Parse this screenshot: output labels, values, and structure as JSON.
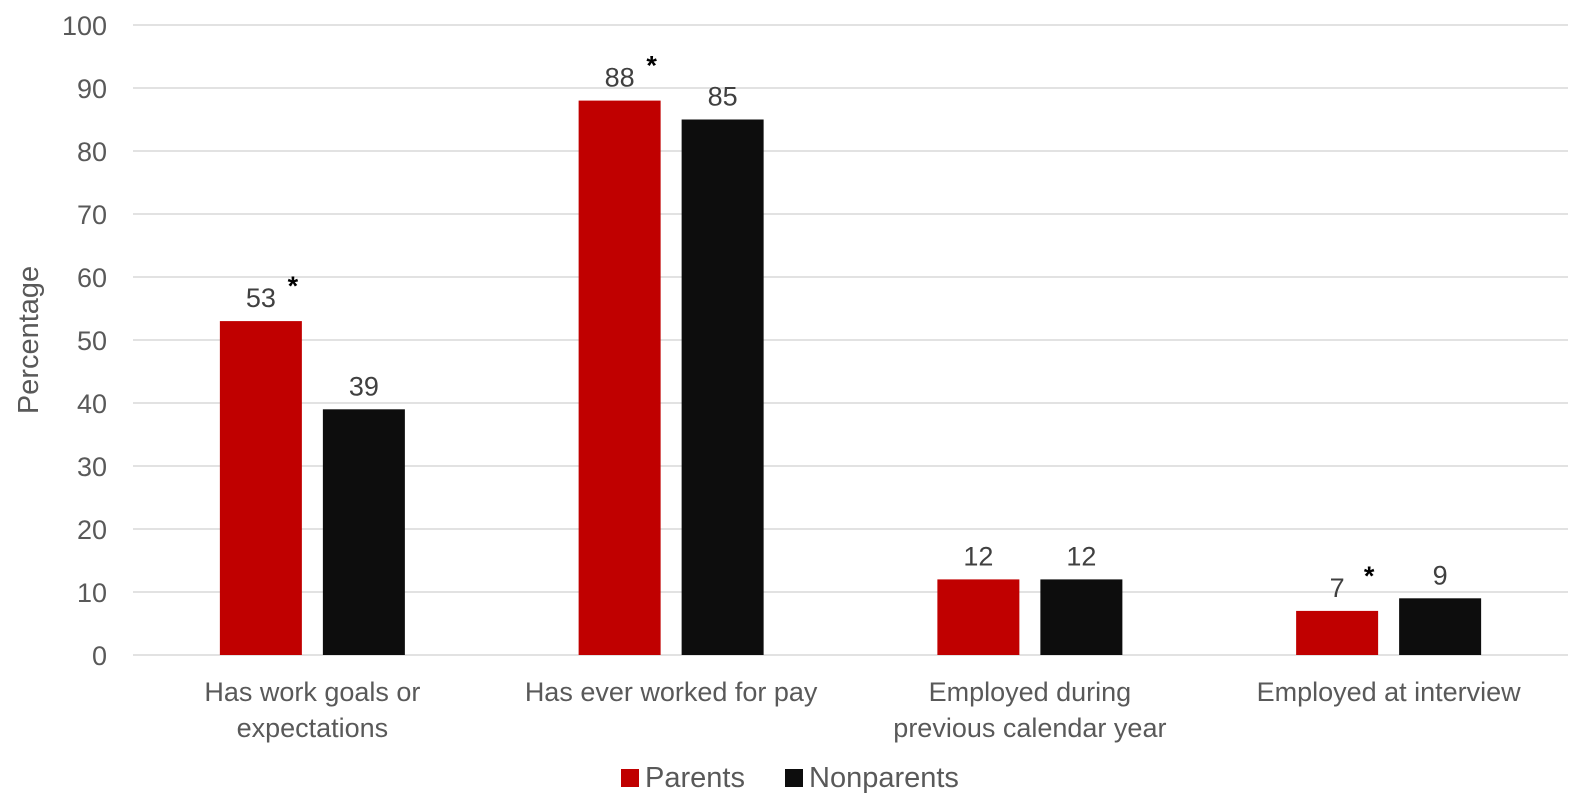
{
  "chart_data": {
    "type": "bar",
    "title": "",
    "xlabel": "",
    "ylabel": "Percentage",
    "ylim": [
      0,
      100
    ],
    "yticks": [
      0,
      10,
      20,
      30,
      40,
      50,
      60,
      70,
      80,
      90,
      100
    ],
    "grid": true,
    "legend_position": "bottom",
    "categories": [
      [
        "Has work goals or",
        "expectations"
      ],
      [
        "Has ever worked for pay"
      ],
      [
        "Employed during",
        "previous calendar year"
      ],
      [
        "Employed at interview"
      ]
    ],
    "series": [
      {
        "name": "Parents",
        "color": "#c00000",
        "values": [
          53,
          88,
          12,
          7
        ],
        "significant": [
          true,
          true,
          false,
          true
        ]
      },
      {
        "name": "Nonparents",
        "color": "#0d0d0d",
        "values": [
          39,
          85,
          12,
          9
        ],
        "significant": [
          false,
          false,
          false,
          false
        ]
      }
    ],
    "significance_marker": "*"
  }
}
